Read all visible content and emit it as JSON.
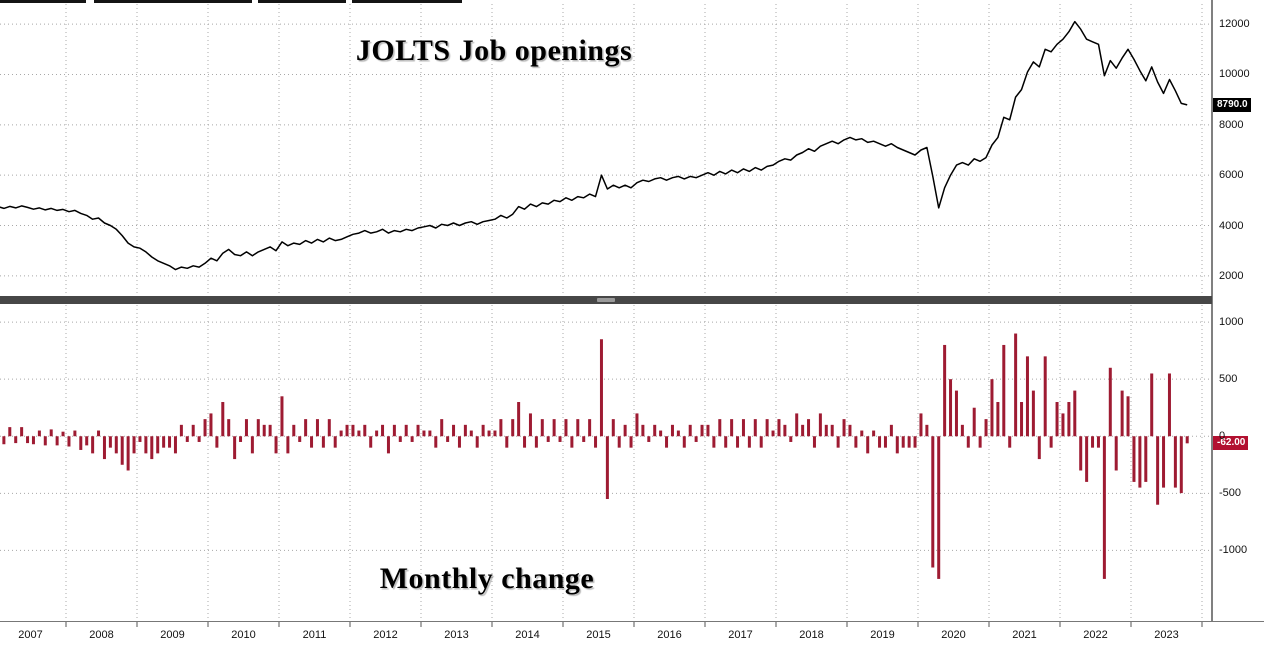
{
  "colors": {
    "line": "#000000",
    "bar": "#9e1b32",
    "grid": "#a8a8a8",
    "axis_line": "#000000",
    "splitter": "#474747",
    "tag_top_bg": "#000000",
    "tag_bottom_bg": "#b21030",
    "tick_text": "#111111"
  },
  "x_axis": {
    "years": [
      "2007",
      "2008",
      "2009",
      "2010",
      "2011",
      "2012",
      "2013",
      "2014",
      "2015",
      "2016",
      "2017",
      "2018",
      "2019",
      "2020",
      "2021",
      "2022",
      "2023"
    ]
  },
  "chart_data": [
    {
      "type": "line",
      "title": "JOLTS Job openings",
      "x_start": "2007-01",
      "x_end": "2023-10",
      "x_freq": "monthly",
      "ylim": [
        1200,
        12800
      ],
      "yticks": [
        2000,
        4000,
        6000,
        8000,
        10000,
        12000
      ],
      "grid": "dotted",
      "last_value_label": "8790.0",
      "values": [
        4750,
        4680,
        4760,
        4700,
        4780,
        4720,
        4650,
        4700,
        4620,
        4680,
        4600,
        4640,
        4550,
        4600,
        4480,
        4400,
        4250,
        4300,
        4100,
        4000,
        3850,
        3600,
        3300,
        3150,
        3100,
        2950,
        2750,
        2600,
        2500,
        2400,
        2250,
        2350,
        2300,
        2400,
        2350,
        2500,
        2700,
        2600,
        2900,
        3050,
        2850,
        2800,
        2950,
        2800,
        2950,
        3050,
        3150,
        3000,
        3350,
        3200,
        3300,
        3250,
        3400,
        3300,
        3450,
        3350,
        3500,
        3400,
        3450,
        3550,
        3650,
        3700,
        3800,
        3700,
        3750,
        3850,
        3700,
        3800,
        3750,
        3850,
        3800,
        3900,
        3950,
        4000,
        3900,
        4050,
        4000,
        4100,
        4000,
        4100,
        4150,
        4050,
        4150,
        4200,
        4250,
        4400,
        4300,
        4450,
        4750,
        4650,
        4850,
        4750,
        4900,
        4850,
        5000,
        4950,
        5100,
        5000,
        5150,
        5100,
        5250,
        5150,
        6000,
        5450,
        5600,
        5500,
        5600,
        5500,
        5700,
        5800,
        5750,
        5850,
        5900,
        5800,
        5900,
        5950,
        5850,
        5950,
        5900,
        6000,
        6100,
        6000,
        6150,
        6050,
        6200,
        6100,
        6250,
        6150,
        6300,
        6200,
        6350,
        6400,
        6550,
        6650,
        6600,
        6800,
        6900,
        7050,
        6950,
        7150,
        7250,
        7350,
        7250,
        7400,
        7500,
        7400,
        7450,
        7300,
        7350,
        7250,
        7150,
        7250,
        7100,
        7000,
        6900,
        6800,
        7000,
        7100,
        5950,
        4700,
        5500,
        6000,
        6400,
        6500,
        6400,
        6650,
        6550,
        6700,
        7200,
        7500,
        8300,
        8200,
        9100,
        9400,
        10100,
        10500,
        10300,
        11000,
        10900,
        11200,
        11400,
        11700,
        12100,
        11800,
        11400,
        11300,
        11200,
        9950,
        10550,
        10250,
        10650,
        11000,
        10600,
        10150,
        9750,
        10300,
        9700,
        9250,
        9800,
        9350,
        8852,
        8790
      ]
    },
    {
      "type": "bar",
      "title": "Monthly change",
      "x_start": "2007-02",
      "x_end": "2023-10",
      "x_freq": "monthly",
      "ylim": [
        -1610,
        1150
      ],
      "yticks": [
        -1000,
        -500,
        0,
        500,
        1000
      ],
      "grid": "dotted",
      "last_value_label": "-62.00",
      "values_note": "bars are the month-over-month change of the job-openings series above (derived as first difference of chart_data[0].values at render time)"
    }
  ]
}
